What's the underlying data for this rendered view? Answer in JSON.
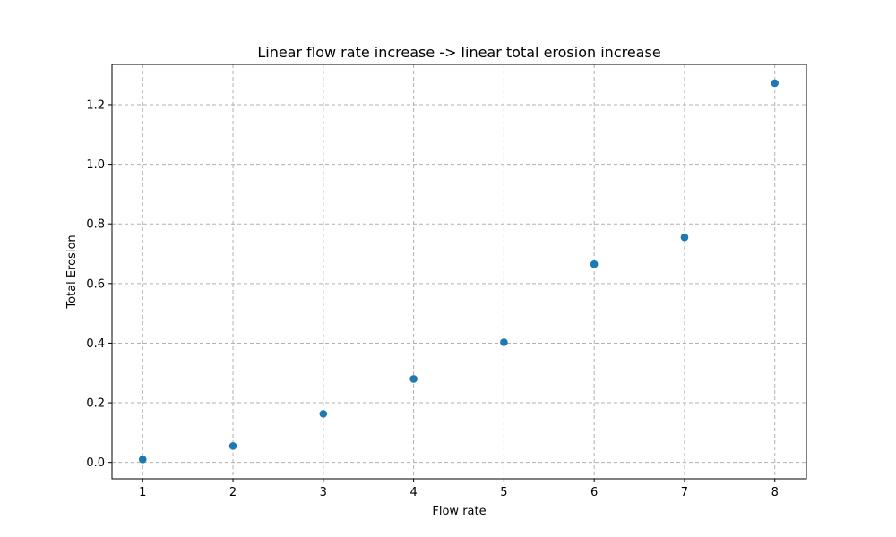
{
  "chart_data": {
    "type": "scatter",
    "title": "Linear flow rate increase -> linear total erosion increase",
    "xlabel": "Flow rate",
    "ylabel": "Total Erosion",
    "xlim": [
      0.66,
      8.35
    ],
    "ylim": [
      -0.055,
      1.335
    ],
    "xticks": [
      1,
      2,
      3,
      4,
      5,
      6,
      7,
      8
    ],
    "xtick_labels": [
      "1",
      "2",
      "3",
      "4",
      "5",
      "6",
      "7",
      "8"
    ],
    "yticks": [
      0.0,
      0.2,
      0.4,
      0.6,
      0.8,
      1.0,
      1.2
    ],
    "ytick_labels": [
      "0.0",
      "0.2",
      "0.4",
      "0.6",
      "0.8",
      "1.0",
      "1.2"
    ],
    "grid": true,
    "marker_color": "#1f77b4",
    "x": [
      1,
      2,
      3,
      4,
      5,
      6,
      7,
      8
    ],
    "y": [
      0.01,
      0.055,
      0.163,
      0.28,
      0.403,
      0.665,
      0.755,
      1.272
    ]
  }
}
